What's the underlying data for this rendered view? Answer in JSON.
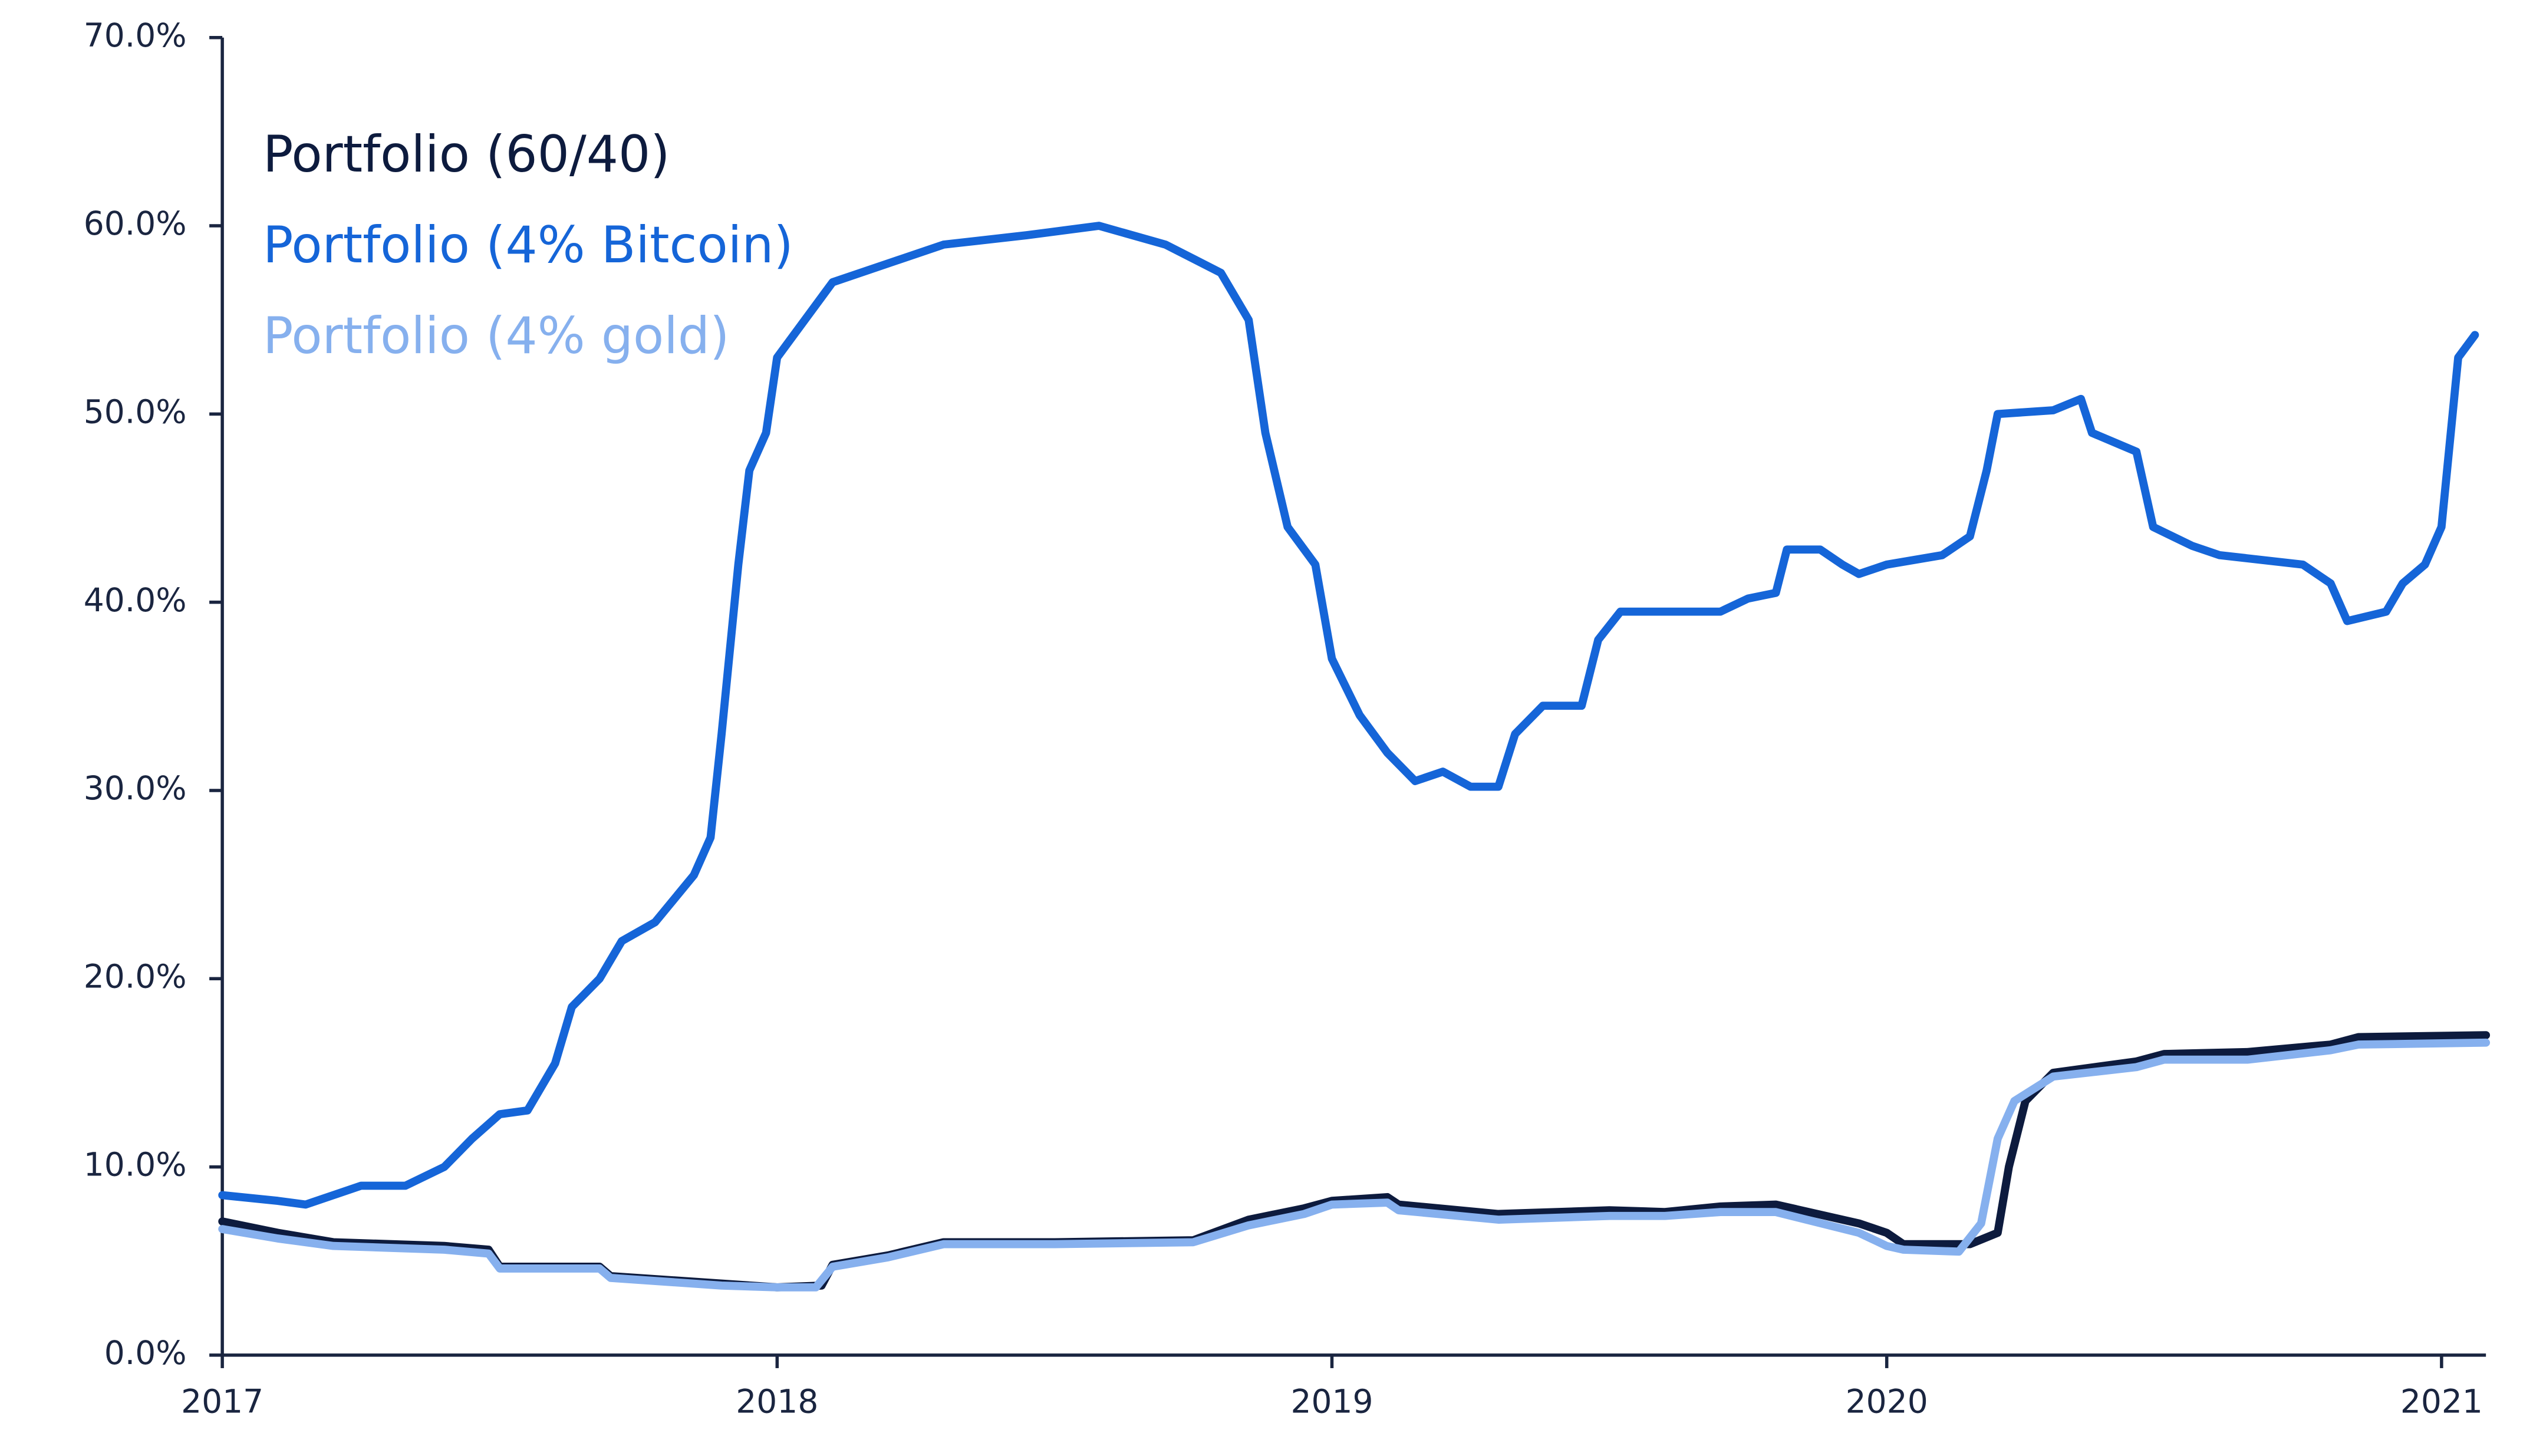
{
  "chart_data": {
    "type": "line",
    "ylim": [
      0,
      70
    ],
    "yticks": [
      {
        "value": 0,
        "label": "0.0%"
      },
      {
        "value": 10,
        "label": "10.0%"
      },
      {
        "value": 20,
        "label": "20.0%"
      },
      {
        "value": 30,
        "label": "30.0%"
      },
      {
        "value": 40,
        "label": "40.0%"
      },
      {
        "value": 50,
        "label": "50.0%"
      },
      {
        "value": 60,
        "label": "60.0%"
      },
      {
        "value": 70,
        "label": "70.0%"
      }
    ],
    "xlim": [
      2017,
      2021.08
    ],
    "xticks": [
      2017,
      2018,
      2019,
      2020,
      2021
    ],
    "grid": false,
    "legend": "upper left",
    "series": [
      {
        "name": "Portfolio (60/40)",
        "color": "#0d1b3e",
        "x": [
          2017,
          2017.1,
          2017.2,
          2017.4,
          2017.48,
          2017.5,
          2017.68,
          2017.7,
          2017.9,
          2018.0,
          2018.08,
          2018.1,
          2018.2,
          2018.3,
          2018.5,
          2018.75,
          2018.85,
          2018.95,
          2019.0,
          2019.1,
          2019.12,
          2019.3,
          2019.5,
          2019.6,
          2019.7,
          2019.8,
          2019.95,
          2020.0,
          2020.03,
          2020.15,
          2020.2,
          2020.22,
          2020.25,
          2020.3,
          2020.45,
          2020.5,
          2020.65,
          2020.8,
          2020.85,
          2021.08
        ],
        "values": [
          7.1,
          6.5,
          6.0,
          5.8,
          5.6,
          4.7,
          4.7,
          4.2,
          3.8,
          3.6,
          3.7,
          4.8,
          5.3,
          6.0,
          6.0,
          6.1,
          7.2,
          7.8,
          8.2,
          8.4,
          8.0,
          7.5,
          7.7,
          7.6,
          7.9,
          8.0,
          7.0,
          6.5,
          5.9,
          5.9,
          6.5,
          10,
          13.5,
          15,
          15.6,
          16.0,
          16.1,
          16.5,
          16.9,
          17.0
        ]
      },
      {
        "name": "Portfolio (4% gold)",
        "color": "#86b0ee",
        "x": [
          2017,
          2017.1,
          2017.2,
          2017.4,
          2017.48,
          2017.5,
          2017.68,
          2017.7,
          2017.9,
          2018.0,
          2018.07,
          2018.1,
          2018.2,
          2018.3,
          2018.5,
          2018.75,
          2018.85,
          2018.95,
          2019.0,
          2019.1,
          2019.12,
          2019.3,
          2019.5,
          2019.6,
          2019.7,
          2019.8,
          2019.95,
          2020.0,
          2020.03,
          2020.13,
          2020.17,
          2020.2,
          2020.23,
          2020.3,
          2020.45,
          2020.5,
          2020.65,
          2020.8,
          2020.85,
          2021.08
        ],
        "values": [
          6.7,
          6.2,
          5.8,
          5.6,
          5.4,
          4.6,
          4.6,
          4.1,
          3.7,
          3.6,
          3.6,
          4.7,
          5.2,
          5.9,
          5.9,
          6.0,
          6.9,
          7.5,
          8.0,
          8.1,
          7.7,
          7.2,
          7.4,
          7.4,
          7.6,
          7.6,
          6.5,
          5.8,
          5.6,
          5.5,
          7,
          11.5,
          13.5,
          14.8,
          15.3,
          15.7,
          15.7,
          16.2,
          16.5,
          16.6
        ]
      },
      {
        "name": "Portfolio (4% Bitcoin)",
        "color": "#1565d8",
        "x": [
          2017.0,
          2017.1,
          2017.15,
          2017.2,
          2017.25,
          2017.33,
          2017.4,
          2017.45,
          2017.5,
          2017.55,
          2017.58,
          2017.6,
          2017.63,
          2017.68,
          2017.72,
          2017.78,
          2017.85,
          2017.88,
          2017.9,
          2017.93,
          2017.95,
          2017.98,
          2018.0,
          2018.05,
          2018.1,
          2018.2,
          2018.3,
          2018.45,
          2018.58,
          2018.7,
          2018.8,
          2018.85,
          2018.88,
          2018.92,
          2018.97,
          2019.0,
          2019.05,
          2019.1,
          2019.15,
          2019.2,
          2019.25,
          2019.3,
          2019.33,
          2019.38,
          2019.45,
          2019.48,
          2019.52,
          2019.6,
          2019.7,
          2019.75,
          2019.8,
          2019.82,
          2019.88,
          2019.92,
          2019.95,
          2020.0,
          2020.1,
          2020.15,
          2020.18,
          2020.2,
          2020.3,
          2020.35,
          2020.37,
          2020.45,
          2020.48,
          2020.55,
          2020.6,
          2020.75,
          2020.8,
          2020.83,
          2020.9,
          2020.93,
          2020.97,
          2021.0,
          2021.03,
          2021.06
        ],
        "values": [
          8.5,
          8.2,
          8.0,
          8.5,
          9.0,
          9.0,
          10.0,
          11.5,
          12.8,
          13.0,
          14.5,
          15.5,
          18.5,
          20,
          22,
          23,
          25.5,
          27.5,
          33,
          42,
          47,
          49,
          53,
          55,
          57,
          58,
          59,
          59.5,
          60,
          59,
          57.5,
          55,
          49,
          44,
          42,
          37,
          34,
          32,
          30.5,
          31,
          30.2,
          30.2,
          33,
          34.5,
          34.5,
          38,
          39.5,
          39.5,
          39.5,
          40.2,
          40.5,
          42.8,
          42.8,
          42,
          41.5,
          42,
          42.5,
          43.5,
          47,
          50,
          50.2,
          50.8,
          49,
          48,
          44,
          43,
          42.5,
          42,
          41,
          39,
          39.5,
          41,
          42,
          44,
          53,
          54.2
        ]
      }
    ]
  }
}
